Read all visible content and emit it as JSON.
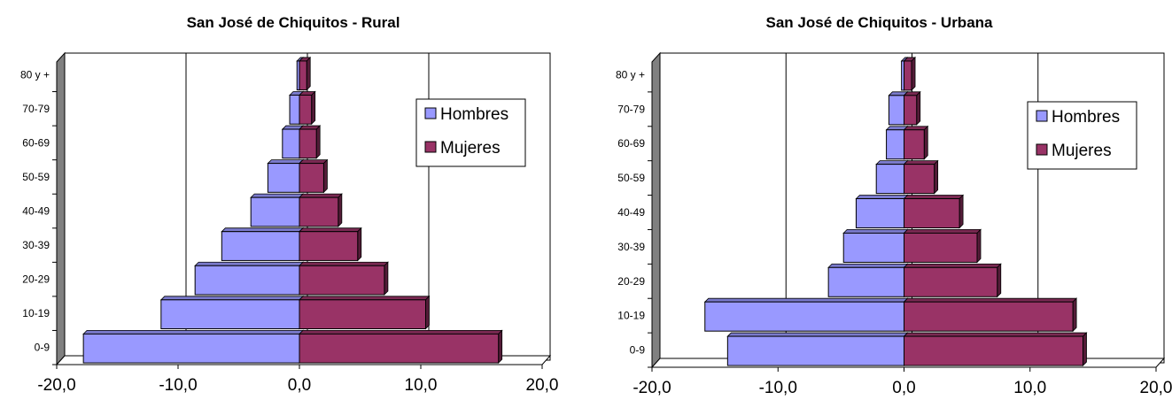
{
  "chart_data": [
    {
      "type": "bar",
      "orientation": "horizontal",
      "title": "San José de Chiquitos - Rural",
      "categories": [
        "0-9",
        "10-19",
        "20-29",
        "30-39",
        "40-49",
        "50-59",
        "60-69",
        "70-79",
        "80 y +"
      ],
      "series": [
        {
          "name": "Hombres",
          "color": "#9999ff",
          "values": [
            -17.8,
            -11.4,
            -8.6,
            -6.4,
            -4.0,
            -2.6,
            -1.4,
            -0.8,
            -0.2
          ]
        },
        {
          "name": "Mujeres",
          "color": "#993366",
          "values": [
            16.4,
            10.4,
            7.0,
            4.8,
            3.2,
            2.0,
            1.4,
            1.0,
            0.6
          ]
        }
      ],
      "xlim": [
        -20,
        20
      ],
      "xticks": [
        "-20,0",
        "-10,0",
        "0,0",
        "10,0",
        "20,0"
      ],
      "gridlines": "vertical",
      "legend": "right"
    },
    {
      "type": "bar",
      "orientation": "horizontal",
      "title": "San José de Chiquitos - Urbana",
      "categories": [
        "0-9",
        "10-19",
        "20-29",
        "30-39",
        "40-49",
        "50-59",
        "60-69",
        "70-79",
        "80 y +"
      ],
      "series": [
        {
          "name": "Hombres",
          "color": "#9999ff",
          "values": [
            -14.0,
            -15.8,
            -6.0,
            -4.8,
            -3.8,
            -2.2,
            -1.4,
            -1.2,
            -0.2
          ]
        },
        {
          "name": "Mujeres",
          "color": "#993366",
          "values": [
            14.2,
            13.4,
            7.4,
            5.8,
            4.4,
            2.4,
            1.6,
            1.0,
            0.6
          ]
        }
      ],
      "xlim": [
        -20,
        20
      ],
      "xticks": [
        "-20,0",
        "-10,0",
        "0,0",
        "10,0",
        "20,0"
      ],
      "gridlines": "vertical",
      "legend": "right"
    }
  ]
}
